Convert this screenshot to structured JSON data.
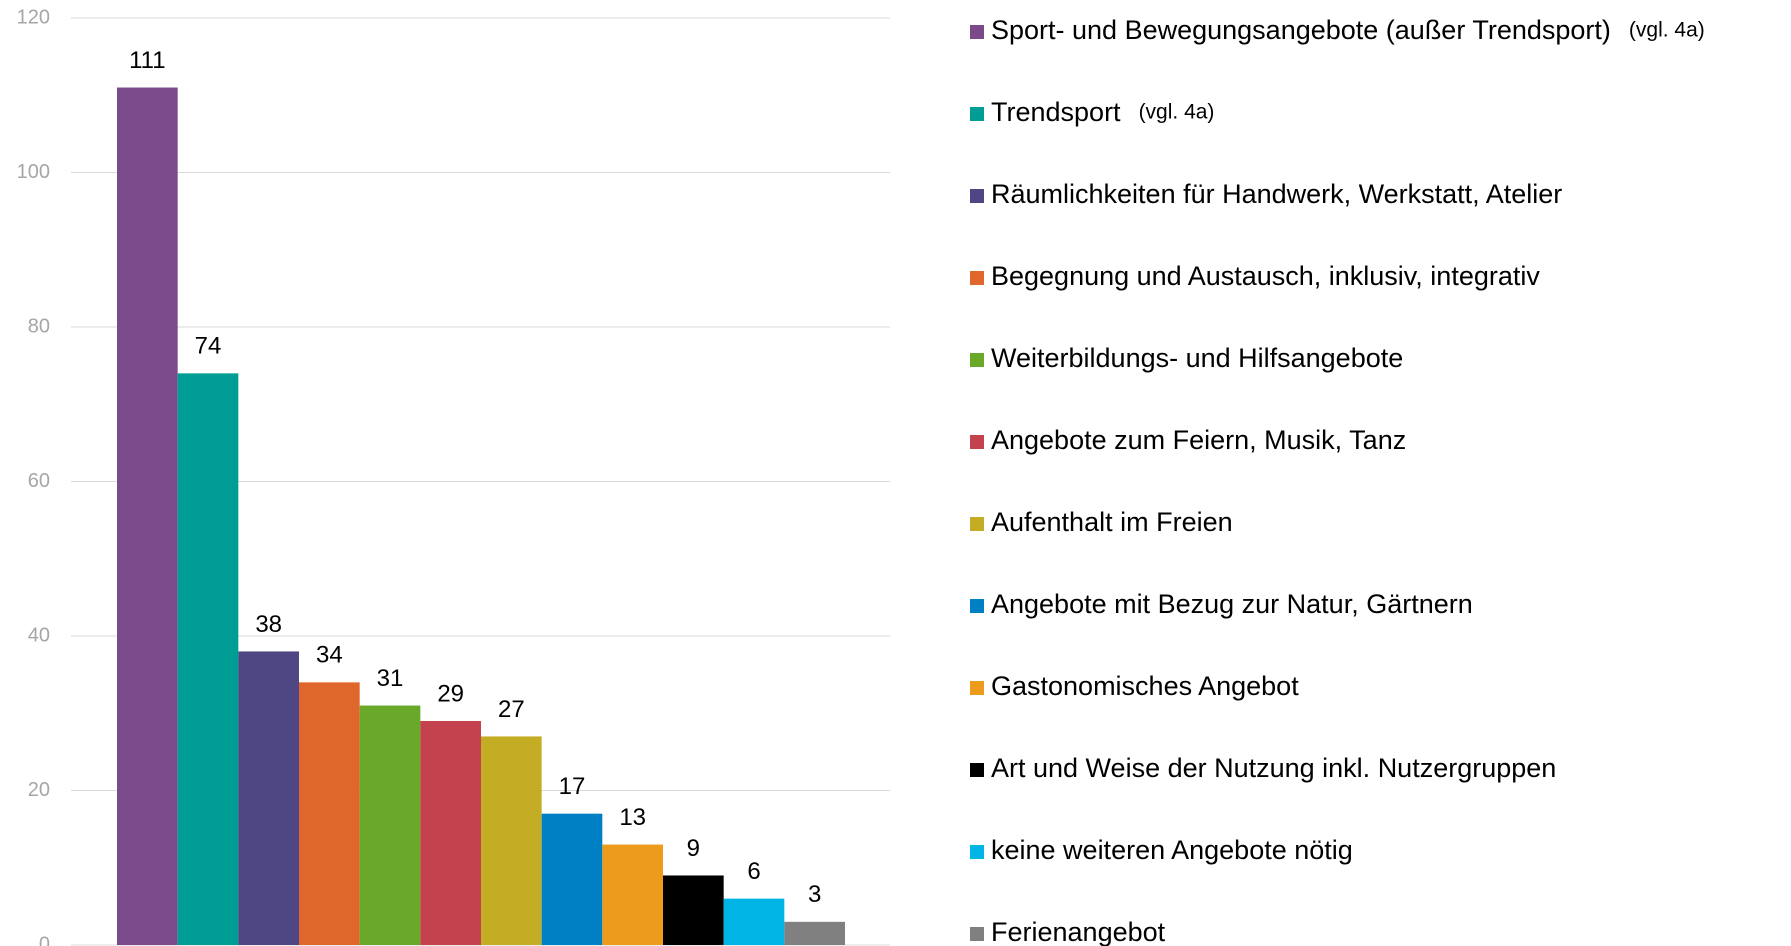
{
  "chart_data": {
    "type": "bar",
    "categories": [
      "Sport- und Bewegungsangebote (außer Trendsport)",
      "Trendsport",
      "Räumlichkeiten für Handwerk, Werkstatt, Atelier",
      "Begegnung und Austausch, inklusiv, integrativ",
      "Weiterbildungs- und Hilfsangebote",
      "Angebote zum Feiern, Musik, Tanz",
      "Aufenthalt im Freien",
      "Angebote mit Bezug zur Natur, Gärtnern",
      "Gastonomisches Angebot",
      "Art und Weise der Nutzung inkl. Nutzergruppen",
      "keine weiteren Angebote nötig",
      "Ferienangebot"
    ],
    "legend_notes": [
      "(vgl. 4a)",
      "(vgl. 4a)",
      null,
      null,
      null,
      null,
      null,
      null,
      null,
      null,
      null,
      null
    ],
    "values": [
      111,
      74,
      38,
      34,
      31,
      29,
      27,
      17,
      13,
      9,
      6,
      3
    ],
    "colors": [
      "#7b4a8b",
      "#009d94",
      "#4e4784",
      "#e0672b",
      "#6aa829",
      "#c3424d",
      "#c4ac25",
      "#0080c4",
      "#ec9b1a",
      "#000000",
      "#00b4e6",
      "#808080"
    ],
    "ylim": [
      0,
      120
    ],
    "yticks": [
      0,
      20,
      40,
      60,
      80,
      100,
      120
    ],
    "grid": true,
    "legend": "right"
  }
}
